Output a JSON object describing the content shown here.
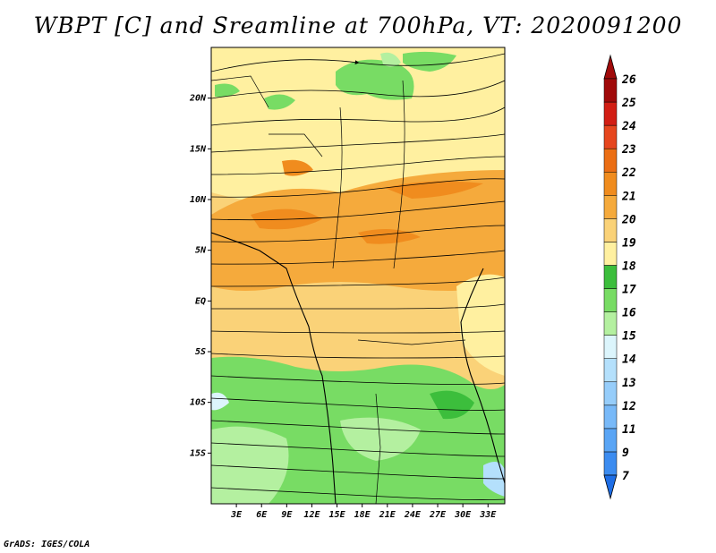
{
  "title": "WBPT [C] and Sreamline at 700hPa, VT: 2020091200",
  "credit": "GrADS: IGES/COLA",
  "map": {
    "lon_range": [
      0,
      35
    ],
    "lat_range": [
      -20,
      25
    ],
    "lat_ticks": [
      {
        "value": 20,
        "label": "20N"
      },
      {
        "value": 15,
        "label": "15N"
      },
      {
        "value": 10,
        "label": "10N"
      },
      {
        "value": 5,
        "label": "5N"
      },
      {
        "value": 0,
        "label": "EQ"
      },
      {
        "value": -5,
        "label": "5S"
      },
      {
        "value": -10,
        "label": "10S"
      },
      {
        "value": -15,
        "label": "15S"
      }
    ],
    "lon_ticks": [
      {
        "value": 3,
        "label": "3E"
      },
      {
        "value": 6,
        "label": "6E"
      },
      {
        "value": 9,
        "label": "9E"
      },
      {
        "value": 12,
        "label": "12E"
      },
      {
        "value": 15,
        "label": "15E"
      },
      {
        "value": 18,
        "label": "18E"
      },
      {
        "value": 21,
        "label": "21E"
      },
      {
        "value": 24,
        "label": "24E"
      },
      {
        "value": 27,
        "label": "27E"
      },
      {
        "value": 30,
        "label": "30E"
      },
      {
        "value": 33,
        "label": "33E"
      }
    ]
  },
  "colorbar": {
    "levels": [
      {
        "label": "7",
        "color": "#1e6ee6"
      },
      {
        "label": "9",
        "color": "#3c8cf0"
      },
      {
        "label": "11",
        "color": "#5aa5f5"
      },
      {
        "label": "12",
        "color": "#78b9f8"
      },
      {
        "label": "13",
        "color": "#96cdfa"
      },
      {
        "label": "14",
        "color": "#b4e0fc"
      },
      {
        "label": "15",
        "color": "#dcf5fc"
      },
      {
        "label": "16",
        "color": "#b4f0a0"
      },
      {
        "label": "17",
        "color": "#78dc64"
      },
      {
        "label": "18",
        "color": "#3cbe3c"
      },
      {
        "label": "19",
        "color": "#fff0a0"
      },
      {
        "label": "20",
        "color": "#fad278"
      },
      {
        "label": "21",
        "color": "#f5aa3c"
      },
      {
        "label": "22",
        "color": "#f08c1e"
      },
      {
        "label": "23",
        "color": "#eb6e14"
      },
      {
        "label": "24",
        "color": "#e6461e"
      },
      {
        "label": "25",
        "color": "#d21e14"
      },
      {
        "label": "26",
        "color": "#a00a0a"
      }
    ]
  }
}
